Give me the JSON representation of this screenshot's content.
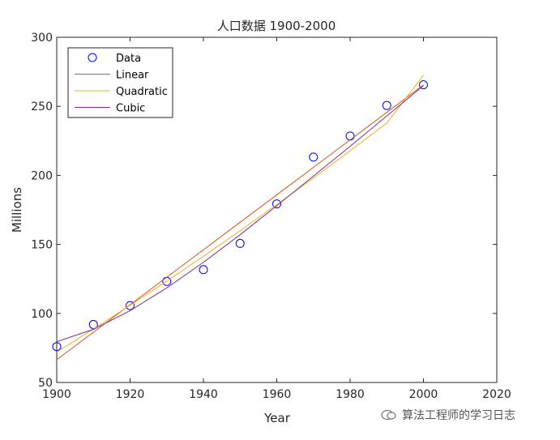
{
  "chart_data": {
    "type": "line",
    "title": "人口数据 1900-2000",
    "xlabel": "Year",
    "ylabel": "Millions",
    "xlim": [
      1900,
      2020
    ],
    "ylim": [
      50,
      300
    ],
    "xticks": [
      1900,
      1920,
      1940,
      1960,
      1980,
      2000,
      2020
    ],
    "yticks": [
      50,
      100,
      150,
      200,
      250,
      300
    ],
    "x": [
      1900,
      1910,
      1920,
      1930,
      1940,
      1950,
      1960,
      1970,
      1980,
      1990,
      2000
    ],
    "grid": false,
    "legend_position": "top-left",
    "series": [
      {
        "name": "Data",
        "kind": "marker",
        "color": "#0000ff",
        "values": [
          76.0,
          92.0,
          105.7,
          123.2,
          131.7,
          150.7,
          179.3,
          213.2,
          228.5,
          250.6,
          265.6
        ]
      },
      {
        "name": "Linear",
        "kind": "line",
        "color": "#d95319",
        "values": [
          66.5,
          86.4,
          106.3,
          126.2,
          146.1,
          166.0,
          185.9,
          205.8,
          225.7,
          245.6,
          265.5
        ]
      },
      {
        "name": "Quadratic",
        "kind": "line",
        "color": "#edb120",
        "values": [
          72.0,
          88.7,
          105.9,
          123.4,
          141.4,
          159.9,
          178.8,
          198.1,
          217.8,
          237.9,
          272.5
        ]
      },
      {
        "name": "Cubic",
        "kind": "line",
        "color": "#7e2f8e",
        "values": [
          79.5,
          88.5,
          102.0,
          118.5,
          137.0,
          157.0,
          178.0,
          199.5,
          221.0,
          243.0,
          265.0
        ]
      }
    ]
  },
  "watermark": {
    "text": "算法工程师的学习日志"
  }
}
